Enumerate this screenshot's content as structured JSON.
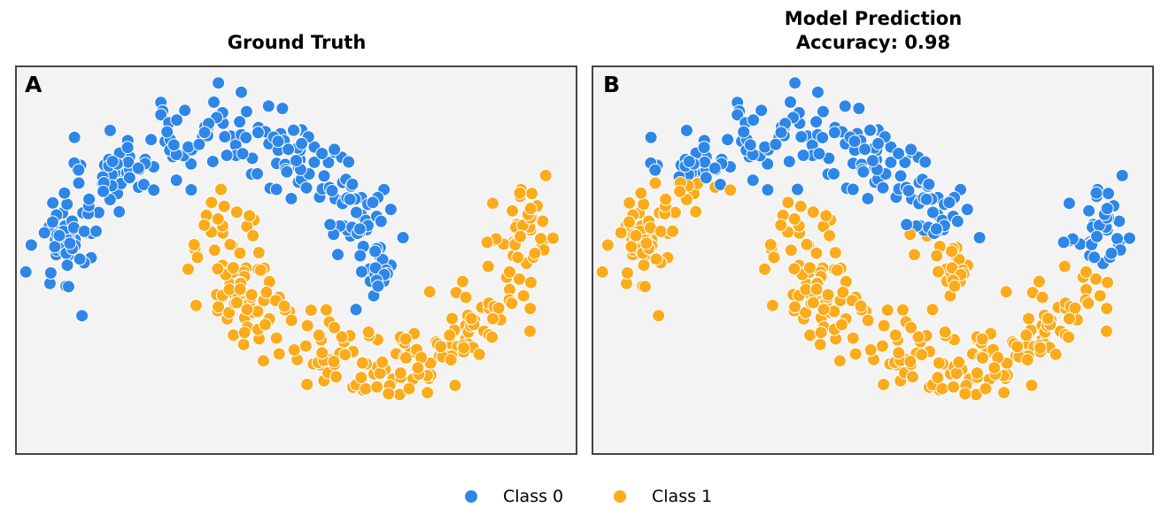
{
  "colors": {
    "class0": "#2e86e8",
    "class1": "#fbab1b",
    "panel_bg": "#f3f3f3",
    "frame": "#444444"
  },
  "legend": {
    "items": [
      {
        "label": "Class 0"
      },
      {
        "label": "Class 1"
      }
    ]
  },
  "chart_data": [
    {
      "type": "scatter",
      "panel_label": "A",
      "title": "Ground Truth",
      "subtitle": "",
      "xlabel": "",
      "ylabel": "",
      "xlim": [
        -1.3,
        2.3
      ],
      "ylim": [
        -1.05,
        1.4
      ],
      "grid": false,
      "legend": "bottom-center",
      "moon_shape": {
        "outer_center": [
          0.0,
          0.0
        ],
        "inner_center": [
          1.0,
          0.5
        ],
        "radius": 1.0
      },
      "series": [
        {
          "name": "Class 0",
          "color": "#2e86e8",
          "count": 250,
          "points_sample": [
            [
              -1.0,
              0.02
            ],
            [
              -0.71,
              0.71
            ],
            [
              0.0,
              1.0
            ],
            [
              0.71,
              0.71
            ],
            [
              1.0,
              0.0
            ],
            [
              -0.62,
              1.21
            ],
            [
              -0.88,
              -0.62
            ]
          ]
        },
        {
          "name": "Class 1",
          "color": "#fbab1b",
          "count": 250,
          "points_sample": [
            [
              0.0,
              0.5
            ],
            [
              0.29,
              -0.21
            ],
            [
              1.0,
              -0.5
            ],
            [
              1.71,
              -0.21
            ],
            [
              2.0,
              0.5
            ],
            [
              1.12,
              -0.93
            ],
            [
              2.1,
              0.14
            ]
          ]
        }
      ]
    },
    {
      "type": "scatter",
      "panel_label": "B",
      "title": "Model Prediction",
      "subtitle": "Accuracy: 0.98",
      "xlabel": "",
      "ylabel": "",
      "xlim": [
        -1.3,
        2.3
      ],
      "ylim": [
        -1.05,
        1.4
      ],
      "grid": false,
      "legend": "bottom-center",
      "accuracy": 0.98,
      "series": [
        {
          "name": "Class 0",
          "color": "#2e86e8",
          "count": 250
        },
        {
          "name": "Class 1",
          "color": "#fbab1b",
          "count": 250
        }
      ]
    }
  ]
}
